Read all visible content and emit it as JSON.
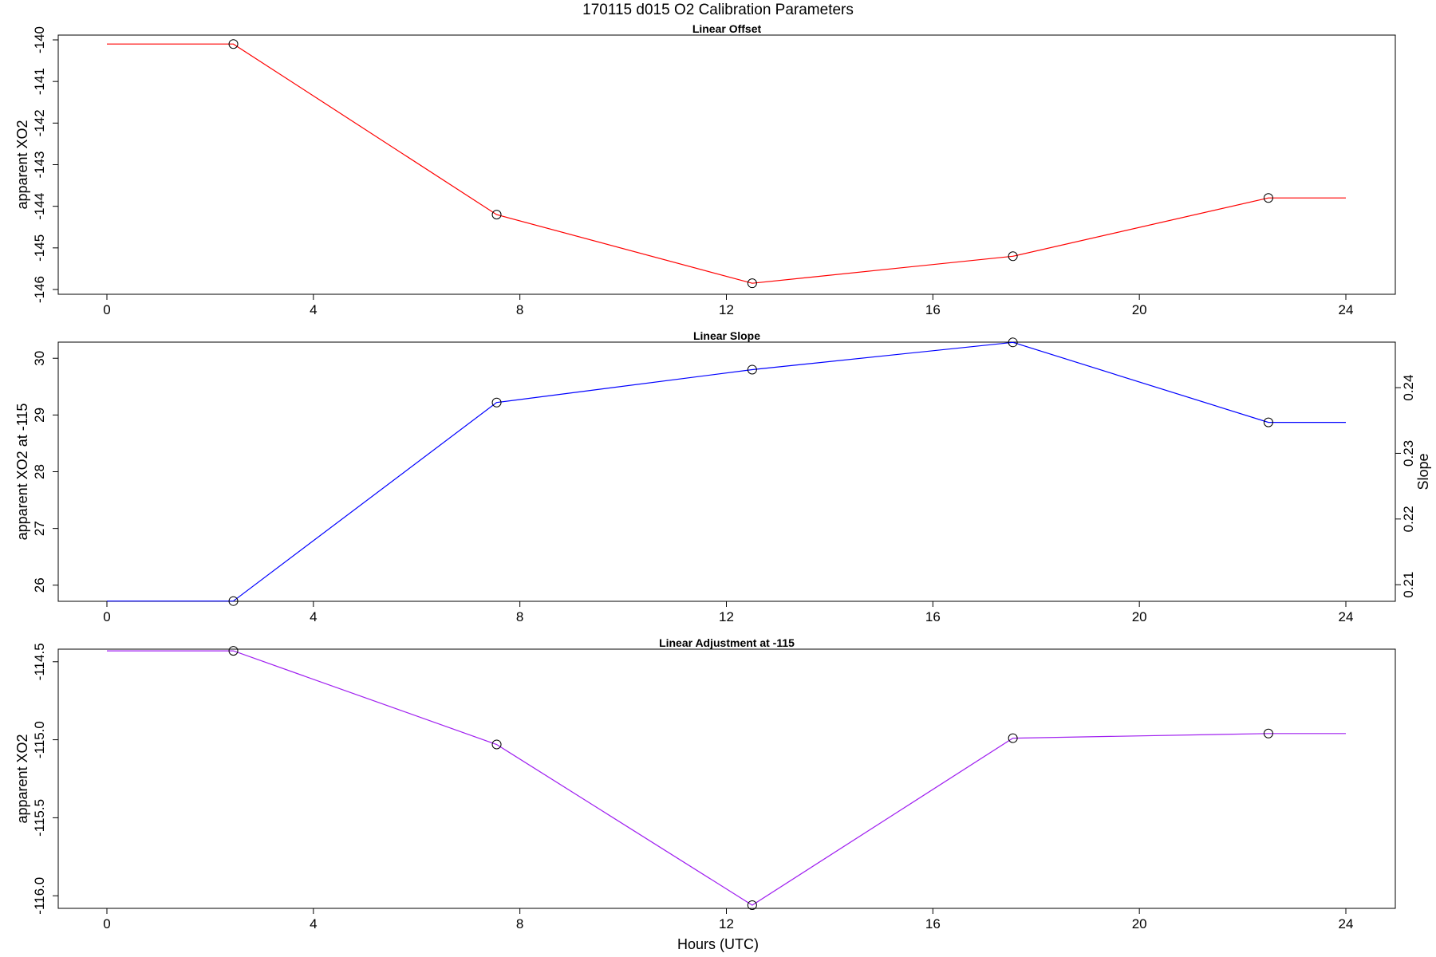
{
  "figure": {
    "title": "170115   d015   O2 Calibration Parameters",
    "xlabel": "Hours (UTC)"
  },
  "chart_data": [
    {
      "type": "line",
      "title": "Linear Offset",
      "xlabel": "",
      "ylabel": "apparent XO2",
      "xlim": [
        0,
        24
      ],
      "xticks": [
        0,
        4,
        8,
        12,
        16,
        20,
        24
      ],
      "ylim": [
        -146,
        -140
      ],
      "yticks": [
        -146,
        -145,
        -144,
        -143,
        -142,
        -141,
        -140
      ],
      "color": "#ff0000",
      "markers": {
        "x": [
          2.45,
          7.55,
          12.5,
          17.55,
          22.5
        ],
        "y": [
          -140.1,
          -144.2,
          -145.85,
          -145.2,
          -143.8
        ]
      },
      "line": {
        "x": [
          0,
          2.45,
          7.55,
          12.5,
          17.55,
          22.5,
          24
        ],
        "y": [
          -140.1,
          -140.1,
          -144.2,
          -145.85,
          -145.2,
          -143.8,
          -143.8
        ]
      }
    },
    {
      "type": "line",
      "title": "Linear Slope",
      "xlabel": "",
      "ylabel": "apparent XO2 at -115",
      "ylabel_right": "Slope",
      "xlim": [
        0,
        24
      ],
      "xticks": [
        0,
        4,
        8,
        12,
        16,
        20,
        24
      ],
      "ylim": [
        25.8,
        30.2
      ],
      "yticks": [
        26,
        27,
        28,
        29,
        30
      ],
      "right_axis": {
        "ticks": [
          0.21,
          0.22,
          0.23,
          0.24
        ],
        "min": 0.2082,
        "max": 0.2462
      },
      "color": "#0000ff",
      "markers": {
        "x": [
          2.45,
          7.55,
          12.5,
          17.55,
          22.5
        ],
        "y": [
          25.72,
          29.22,
          29.8,
          30.28,
          28.87
        ]
      },
      "line": {
        "x": [
          0,
          2.45,
          7.55,
          12.5,
          17.55,
          22.5,
          24
        ],
        "y": [
          25.72,
          25.72,
          29.22,
          29.8,
          30.28,
          28.87,
          28.87
        ]
      }
    },
    {
      "type": "line",
      "title": "Linear Adjustment at -115",
      "xlabel": "",
      "ylabel": "apparent XO2",
      "xlim": [
        0,
        24
      ],
      "xticks": [
        0,
        4,
        8,
        12,
        16,
        20,
        24
      ],
      "ylim": [
        -116.05,
        -114.45
      ],
      "yticks": [
        "-116.0",
        "-115.5",
        "-115.0",
        "-114.5"
      ],
      "color": "#a020f0",
      "markers": {
        "x": [
          2.45,
          7.55,
          12.5,
          17.55,
          22.5
        ],
        "y": [
          -114.43,
          -115.03,
          -116.06,
          -114.99,
          -114.96
        ]
      },
      "line": {
        "x": [
          0,
          2.45,
          7.55,
          12.5,
          17.55,
          22.5,
          24
        ],
        "y": [
          -114.43,
          -114.43,
          -115.03,
          -116.06,
          -114.99,
          -114.96,
          -114.96
        ]
      }
    }
  ]
}
